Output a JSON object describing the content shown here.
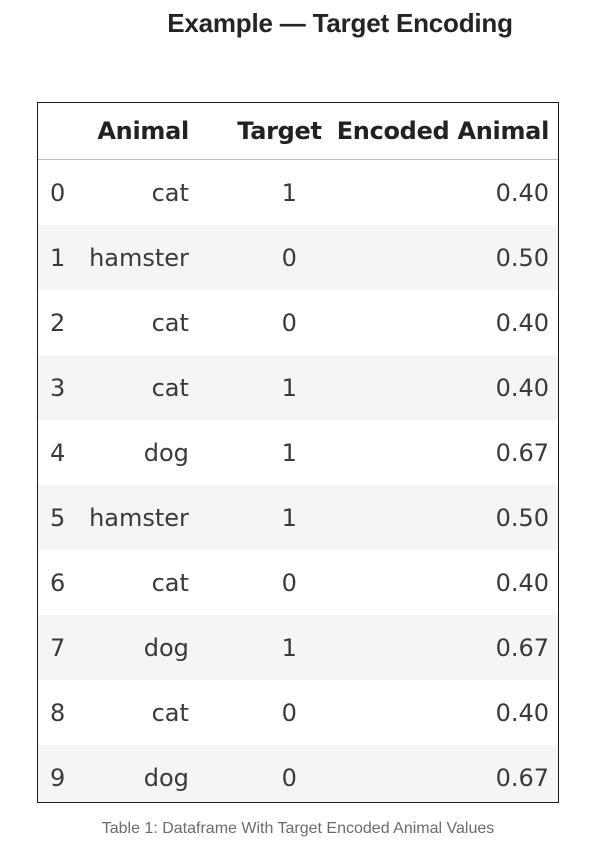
{
  "title": "Example — Target Encoding",
  "table": {
    "columns": [
      "",
      "Animal",
      "Target",
      "Encoded Animal"
    ],
    "rows": [
      {
        "index": "0",
        "animal": "cat",
        "target": "1",
        "encoded": "0.40"
      },
      {
        "index": "1",
        "animal": "hamster",
        "target": "0",
        "encoded": "0.50"
      },
      {
        "index": "2",
        "animal": "cat",
        "target": "0",
        "encoded": "0.40"
      },
      {
        "index": "3",
        "animal": "cat",
        "target": "1",
        "encoded": "0.40"
      },
      {
        "index": "4",
        "animal": "dog",
        "target": "1",
        "encoded": "0.67"
      },
      {
        "index": "5",
        "animal": "hamster",
        "target": "1",
        "encoded": "0.50"
      },
      {
        "index": "6",
        "animal": "cat",
        "target": "0",
        "encoded": "0.40"
      },
      {
        "index": "7",
        "animal": "dog",
        "target": "1",
        "encoded": "0.67"
      },
      {
        "index": "8",
        "animal": "cat",
        "target": "0",
        "encoded": "0.40"
      },
      {
        "index": "9",
        "animal": "dog",
        "target": "0",
        "encoded": "0.67"
      }
    ]
  },
  "caption": "Table 1: Dataframe With Target Encoded Animal Values"
}
